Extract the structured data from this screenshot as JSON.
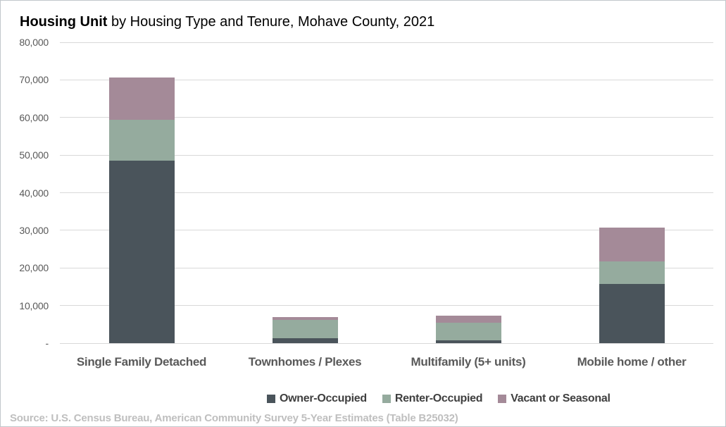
{
  "title": {
    "bold": "Housing Unit",
    "rest": " by Housing Type and Tenure, Mohave County, 2021"
  },
  "chart_data": {
    "type": "bar",
    "stacked": true,
    "title": "Housing Unit by Housing Type and Tenure, Mohave County, 2021",
    "categories": [
      "Single Family Detached",
      "Townhomes / Plexes",
      "Multifamily (5+ units)",
      "Mobile home / other"
    ],
    "series": [
      {
        "name": "Owner-Occupied",
        "color": "#4a545b",
        "values": [
          48500,
          1400,
          800,
          15700
        ]
      },
      {
        "name": "Renter-Occupied",
        "color": "#95ab9e",
        "values": [
          10900,
          4850,
          4700,
          6000
        ]
      },
      {
        "name": "Vacant or Seasonal",
        "color": "#a48a98",
        "values": [
          11200,
          750,
          1900,
          9000
        ]
      }
    ],
    "totals": [
      70600,
      7000,
      7400,
      30700
    ],
    "ylim": [
      0,
      80000
    ],
    "yticks": [
      {
        "value": 0,
        "label": "-"
      },
      {
        "value": 10000,
        "label": "10,000"
      },
      {
        "value": 20000,
        "label": "20,000"
      },
      {
        "value": 30000,
        "label": "30,000"
      },
      {
        "value": 40000,
        "label": "40,000"
      },
      {
        "value": 50000,
        "label": "50,000"
      },
      {
        "value": 60000,
        "label": "60,000"
      },
      {
        "value": 70000,
        "label": "70,000"
      },
      {
        "value": 80000,
        "label": "80,000"
      }
    ],
    "grid": "horizontal",
    "gridline_color": "#d9d9d9",
    "legend_position": "bottom-center"
  },
  "source": {
    "text": "Source: U.S. Census Bureau, American Community Survey 5-Year Estimates (Table B25032)"
  },
  "colors": {
    "owner": "#4a545b",
    "renter": "#95ab9e",
    "vacant": "#a48a98",
    "gridline": "#d9d9d9",
    "axis_text": "#595959",
    "category_text": "#595959",
    "legend_text": "#3f3f3f",
    "source_text": "#bfbfbf",
    "border": "#c2c7cb"
  }
}
